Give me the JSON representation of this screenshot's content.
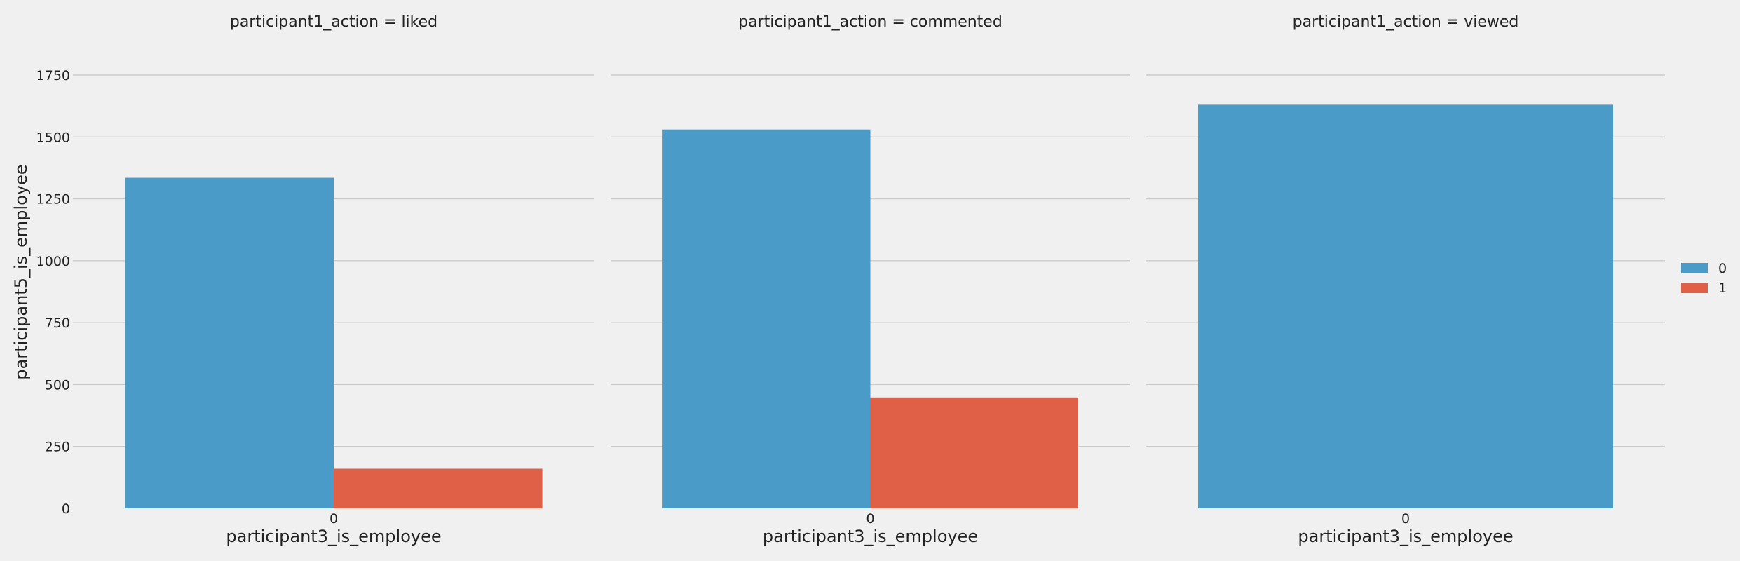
{
  "chart_data": {
    "type": "bar",
    "layout": "facet-columns",
    "ylabel": "participant5_is_employee",
    "ylim": [
      0,
      1900
    ],
    "yticks": [
      0,
      250,
      500,
      750,
      1000,
      1250,
      1500,
      1750
    ],
    "grid": true,
    "legend": {
      "placement": "right",
      "entries": [
        {
          "label": "0",
          "color": "#4a9bc7"
        },
        {
          "label": "1",
          "color": "#e05f47"
        }
      ]
    },
    "facets": [
      {
        "title": "participant1_action = liked",
        "xlabel": "participant3_is_employee",
        "categories": [
          "0"
        ],
        "series": [
          {
            "name": "0",
            "color": "#4a9bc7",
            "values": [
              1335
            ]
          },
          {
            "name": "1",
            "color": "#e05f47",
            "values": [
              160
            ]
          }
        ]
      },
      {
        "title": "participant1_action = commented",
        "xlabel": "participant3_is_employee",
        "categories": [
          "0"
        ],
        "series": [
          {
            "name": "0",
            "color": "#4a9bc7",
            "values": [
              1530
            ]
          },
          {
            "name": "1",
            "color": "#e05f47",
            "values": [
              448
            ]
          }
        ]
      },
      {
        "title": "participant1_action = viewed",
        "xlabel": "participant3_is_employee",
        "categories": [
          "0"
        ],
        "series": [
          {
            "name": "0",
            "color": "#4a9bc7",
            "values": [
              1630
            ]
          }
        ]
      }
    ]
  }
}
